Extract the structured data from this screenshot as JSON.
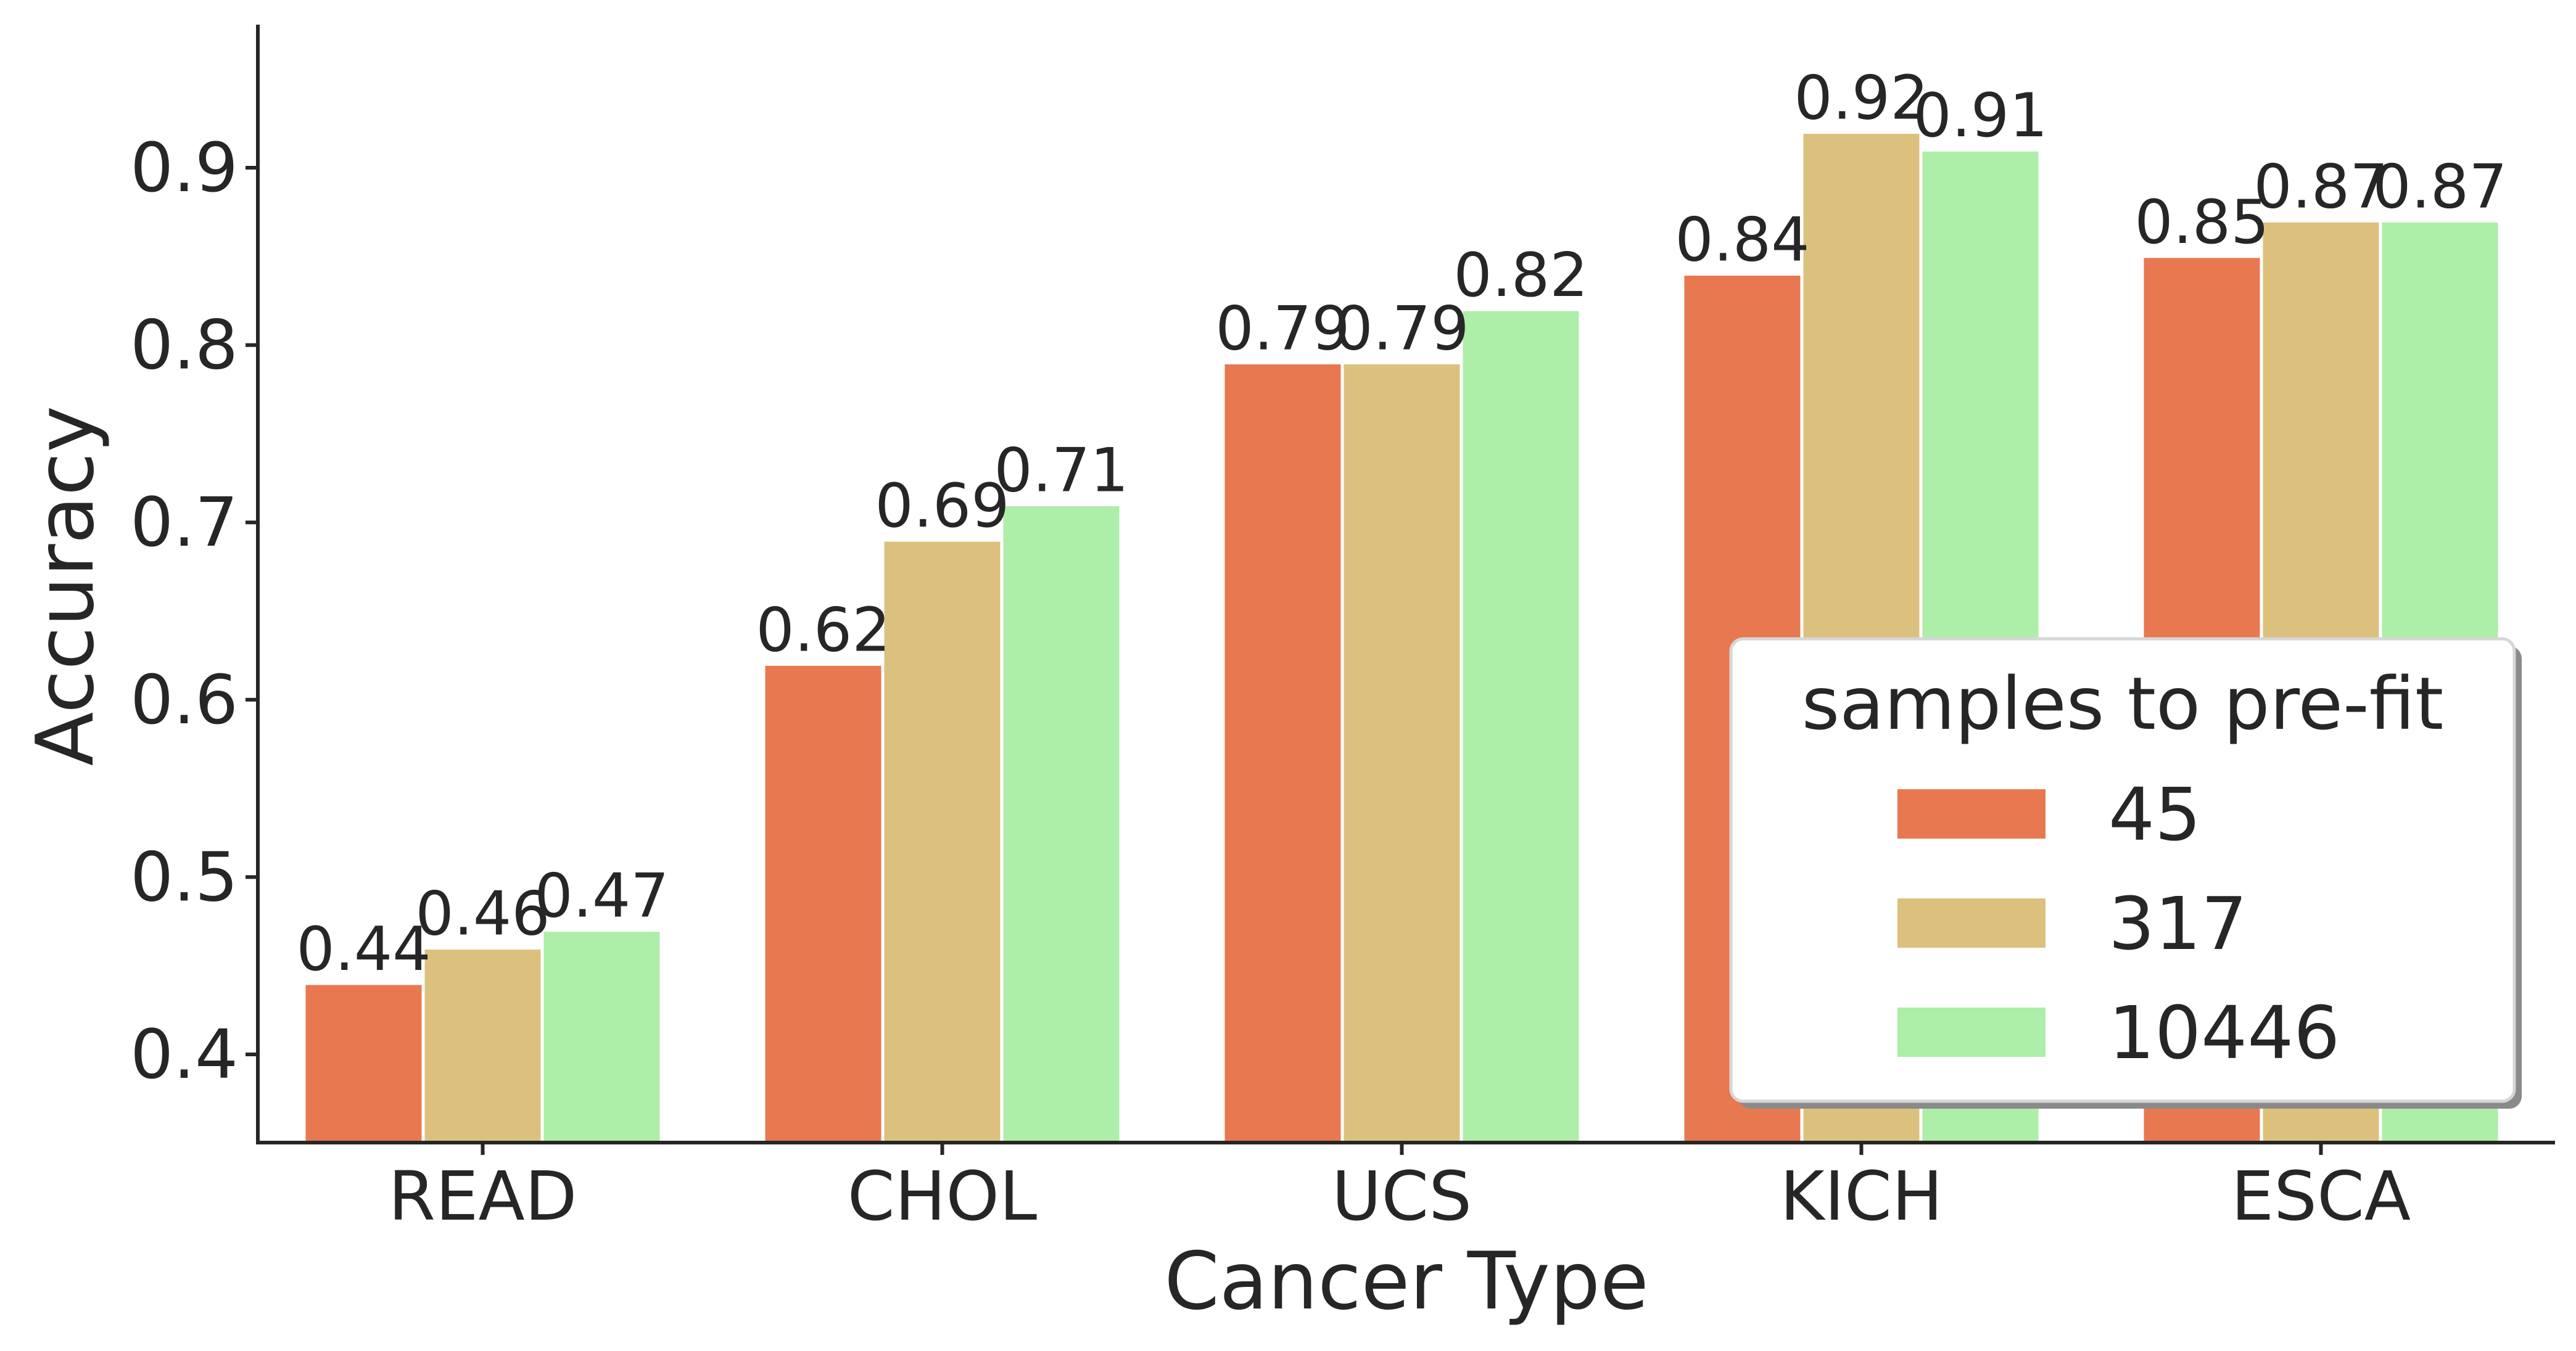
{
  "chart_data": {
    "type": "bar",
    "title": "",
    "xlabel": "Cancer Type",
    "ylabel": "Accuracy",
    "categories": [
      "READ",
      "CHOL",
      "UCS",
      "KICH",
      "ESCA"
    ],
    "series": [
      {
        "name": "45",
        "color": "#e8784f",
        "values": [
          0.44,
          0.62,
          0.79,
          0.84,
          0.85
        ],
        "labels": [
          "0.44",
          "0.62",
          "0.79",
          "0.84",
          "0.85"
        ]
      },
      {
        "name": "317",
        "color": "#dcc17e",
        "values": [
          0.46,
          0.69,
          0.79,
          0.92,
          0.87
        ],
        "labels": [
          "0.46",
          "0.69",
          "0.79",
          "0.92",
          "0.87"
        ]
      },
      {
        "name": "10446",
        "color": "#adeea8",
        "values": [
          0.47,
          0.71,
          0.82,
          0.91,
          0.87
        ],
        "labels": [
          "0.47",
          "0.71",
          "0.82",
          "0.91",
          "0.87"
        ]
      }
    ],
    "ylim": [
      0.35,
      0.98
    ],
    "yticks": [
      0.4,
      0.5,
      0.6,
      0.7,
      0.8,
      0.9
    ],
    "ytick_labels": [
      "0.4",
      "0.5",
      "0.6",
      "0.7",
      "0.8",
      "0.9"
    ],
    "grid": false,
    "legend": {
      "title": "samples to pre-fit",
      "placement": "lower-right"
    }
  }
}
